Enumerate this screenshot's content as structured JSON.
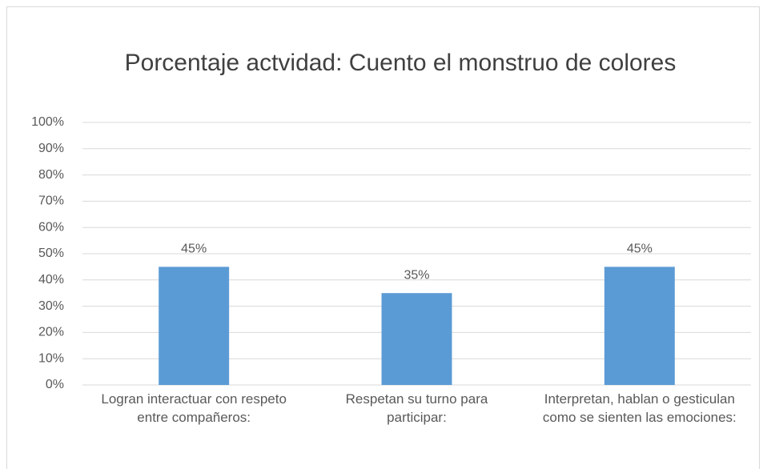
{
  "chart_data": {
    "type": "bar",
    "title": "Porcentaje actvidad: Cuento el monstruo de colores",
    "categories": [
      "Logran interactuar con respeto entre compañeros:",
      "Respetan su turno para participar:",
      "Interpretan, hablan o gesticulan como se sienten las emociones:"
    ],
    "values": [
      45,
      35,
      45
    ],
    "value_labels": [
      "45%",
      "35%",
      "45%"
    ],
    "color": "#5b9bd5",
    "ylim": [
      0,
      100
    ],
    "yticks": [
      {
        "value": 0,
        "label": "0%"
      },
      {
        "value": 10,
        "label": "10%"
      },
      {
        "value": 20,
        "label": "20%"
      },
      {
        "value": 30,
        "label": "30%"
      },
      {
        "value": 40,
        "label": "40%"
      },
      {
        "value": 50,
        "label": "50%"
      },
      {
        "value": 60,
        "label": "60%"
      },
      {
        "value": 70,
        "label": "70%"
      },
      {
        "value": 80,
        "label": "80%"
      },
      {
        "value": 90,
        "label": "90%"
      },
      {
        "value": 100,
        "label": "100%"
      }
    ],
    "grid": true
  }
}
